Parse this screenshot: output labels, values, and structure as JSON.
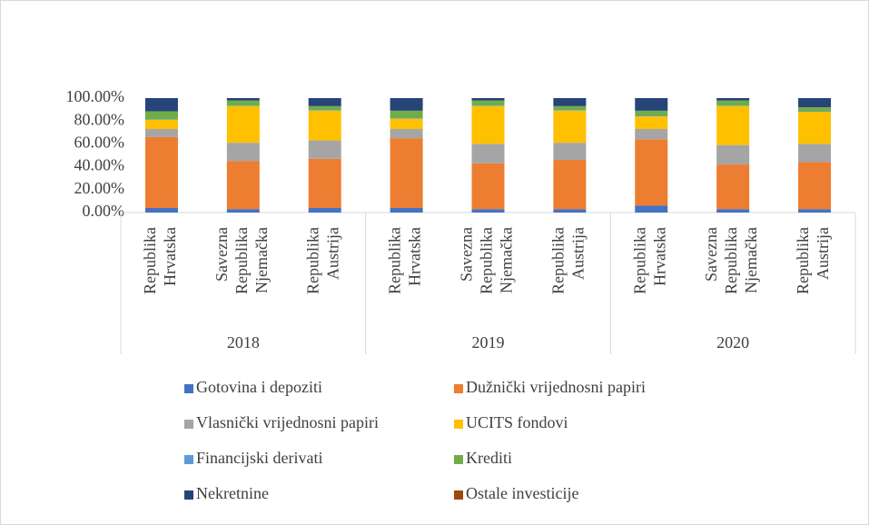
{
  "chart_data": {
    "type": "stacked_bar",
    "categories": [
      "Republika Hrvatska",
      "Savezna Republika Njemačka",
      "Republika Austrija",
      "Republika Hrvatska",
      "Savezna Republika Njemačka",
      "Republika Austrija",
      "Republika Hrvatska",
      "Savezna Republika Njemačka",
      "Republika Austrija"
    ],
    "groups": [
      "2018",
      "2019",
      "2020"
    ],
    "series": [
      {
        "name": "Gotovina i depoziti",
        "color": "#4472c4",
        "values": [
          4,
          3,
          4,
          4,
          3,
          3,
          6,
          3,
          3
        ]
      },
      {
        "name": "Dužnički vrijednosni papiri",
        "color": "#ed7d31",
        "values": [
          62,
          42,
          43,
          61,
          40,
          43,
          58,
          39,
          41
        ]
      },
      {
        "name": "Vlasnički vrijednosni papiri",
        "color": "#a5a5a5",
        "values": [
          7,
          16,
          16,
          8,
          17,
          15,
          9,
          17,
          16
        ]
      },
      {
        "name": "UCITS fondovi",
        "color": "#ffc000",
        "values": [
          8,
          32,
          26,
          9,
          33,
          28,
          11,
          34,
          28
        ]
      },
      {
        "name": "Financijski derivati",
        "color": "#5b9bd5",
        "values": [
          0.5,
          0.5,
          0.5,
          0.5,
          0.5,
          0.5,
          0.5,
          0.5,
          0.5
        ]
      },
      {
        "name": "Krediti",
        "color": "#70ad47",
        "values": [
          7,
          4.5,
          3.5,
          6.5,
          4.5,
          3.5,
          4.5,
          4.5,
          3.5
        ]
      },
      {
        "name": "Nekretnine",
        "color": "#264478",
        "values": [
          11.5,
          2,
          7,
          11,
          2,
          7,
          11,
          2,
          8
        ]
      },
      {
        "name": "Ostale investicije",
        "color": "#9e480e",
        "values": [
          0,
          0,
          0,
          0,
          0,
          0,
          0,
          0,
          0
        ]
      }
    ],
    "ylim": [
      0,
      100
    ],
    "yticks": [
      {
        "value": 0,
        "label": "0.00%"
      },
      {
        "value": 20,
        "label": "20.00%"
      },
      {
        "value": 40,
        "label": "40.00%"
      },
      {
        "value": 60,
        "label": "60.00%"
      },
      {
        "value": 80,
        "label": "80.00%"
      },
      {
        "value": 100,
        "label": "100.00%"
      }
    ],
    "grid": false
  }
}
